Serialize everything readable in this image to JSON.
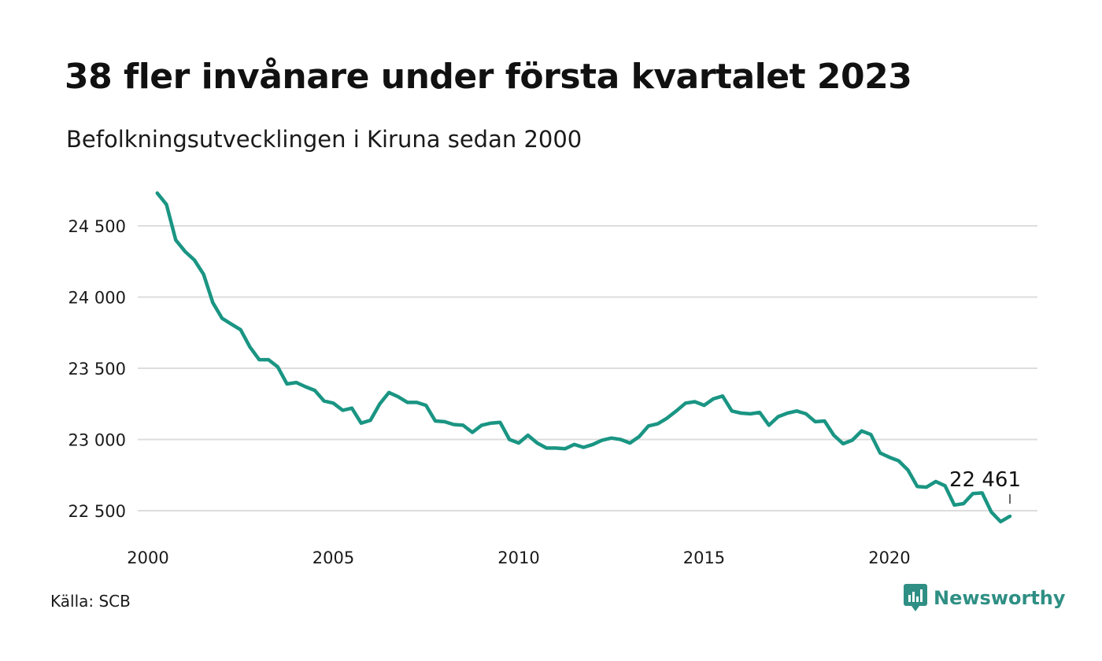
{
  "title": "38 fler invånare under första kvartalet 2023",
  "subtitle": "Befolkningsutvecklingen i Kiruna sedan 2000",
  "source": "Källa: SCB",
  "brand": {
    "name": "Newsworthy",
    "icon": "newsworthy-logo-icon"
  },
  "colors": {
    "line": "#1a9583",
    "grid": "#dddddd",
    "brand": "#2f8f84"
  },
  "chart_data": {
    "type": "line",
    "title": "38 fler invånare under första kvartalet 2023",
    "subtitle": "Befolkningsutvecklingen i Kiruna sedan 2000",
    "xlabel": "",
    "ylabel": "",
    "xlim": [
      2000,
      2023.25
    ],
    "ylim": [
      22420,
      24750
    ],
    "grid": "horizontal",
    "legend": "none",
    "x_ticks": [
      2000,
      2005,
      2010,
      2015,
      2020
    ],
    "x_tick_labels": [
      "2000",
      "2005",
      "2010",
      "2015",
      "2020"
    ],
    "y_ticks": [
      22500,
      23000,
      23500,
      24000,
      24500
    ],
    "y_tick_labels": [
      "22 500",
      "23 000",
      "23 500",
      "24 000",
      "24 500"
    ],
    "end_label": "22 461",
    "series": [
      {
        "x": [
          2000.25,
          2000.5,
          2000.75,
          2001,
          2001.25,
          2001.5,
          2001.75,
          2002,
          2002.25,
          2002.5,
          2002.75,
          2003,
          2003.25,
          2003.5,
          2003.75,
          2004,
          2004.25,
          2004.5,
          2004.75,
          2005,
          2005.25,
          2005.5,
          2005.75,
          2006,
          2006.25,
          2006.5,
          2006.75,
          2007,
          2007.25,
          2007.5,
          2007.75,
          2008,
          2008.25,
          2008.5,
          2008.75,
          2009,
          2009.25,
          2009.5,
          2009.75,
          2010,
          2010.25,
          2010.5,
          2010.75,
          2011,
          2011.25,
          2011.5,
          2011.75,
          2012,
          2012.25,
          2012.5,
          2012.75,
          2013,
          2013.25,
          2013.5,
          2013.75,
          2014,
          2014.25,
          2014.5,
          2014.75,
          2015,
          2015.25,
          2015.5,
          2015.75,
          2016,
          2016.25,
          2016.5,
          2016.75,
          2017,
          2017.25,
          2017.5,
          2017.75,
          2018,
          2018.25,
          2018.5,
          2018.75,
          2019,
          2019.25,
          2019.5,
          2019.75,
          2020,
          2020.25,
          2020.5,
          2020.75,
          2021,
          2021.25,
          2021.5,
          2021.75,
          2022,
          2022.25,
          2022.5,
          2022.75,
          2023,
          2023.25
        ],
        "y": [
          24730,
          24650,
          24400,
          24320,
          24260,
          24160,
          23960,
          23850,
          23810,
          23770,
          23650,
          23560,
          23560,
          23510,
          23390,
          23400,
          23370,
          23345,
          23270,
          23255,
          23205,
          23220,
          23115,
          23135,
          23250,
          23330,
          23300,
          23260,
          23260,
          23240,
          23130,
          23125,
          23105,
          23100,
          23050,
          23100,
          23115,
          23120,
          23000,
          22975,
          23030,
          22975,
          22940,
          22940,
          22935,
          22965,
          22945,
          22965,
          22995,
          23010,
          23000,
          22975,
          23020,
          23095,
          23110,
          23150,
          23200,
          23255,
          23265,
          23240,
          23285,
          23305,
          23200,
          23185,
          23180,
          23190,
          23100,
          23160,
          23185,
          23200,
          23180,
          23125,
          23130,
          23030,
          22970,
          22995,
          23060,
          23035,
          22905,
          22875,
          22850,
          22785,
          22670,
          22665,
          22705,
          22675,
          22540,
          22550,
          22620,
          22625,
          22490,
          22423,
          22461
        ]
      }
    ]
  }
}
